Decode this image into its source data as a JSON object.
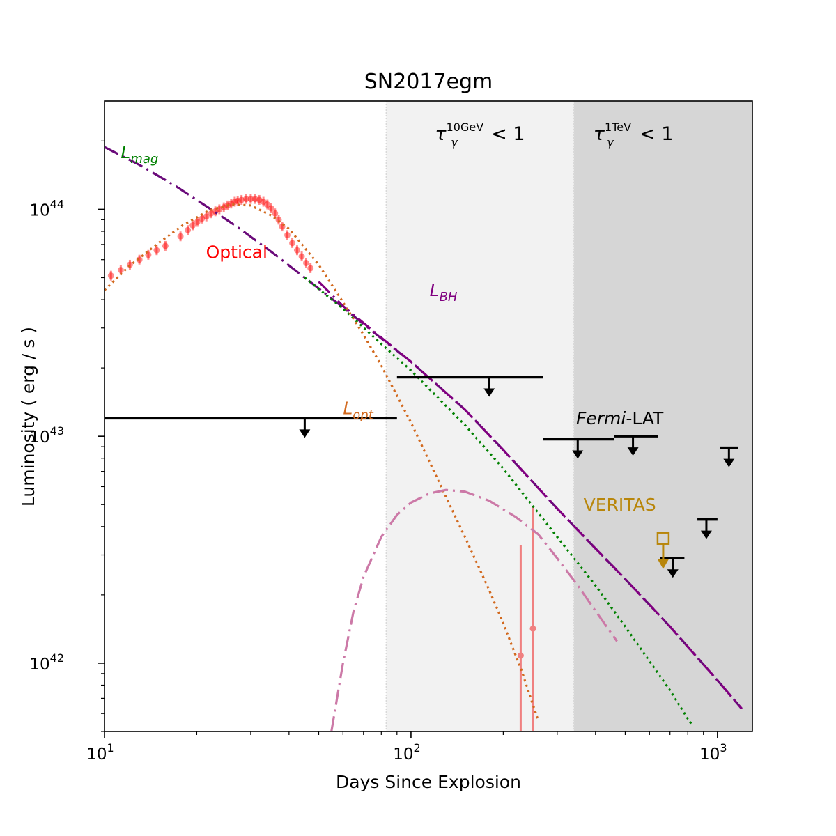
{
  "chart_data": {
    "type": "line",
    "title": "SN2017egm",
    "xlabel": "Days Since Explosion",
    "ylabel": "Luminosity ( erg / s )",
    "xscale": "log",
    "yscale": "log",
    "xlim": [
      10,
      1300
    ],
    "ylim": [
      5e+41,
      3e+44
    ],
    "grid": false,
    "x_ticks": [
      {
        "value": 10,
        "base": "10",
        "exp": "1"
      },
      {
        "value": 100,
        "base": "10",
        "exp": "2"
      },
      {
        "value": 1000,
        "base": "10",
        "exp": "3"
      }
    ],
    "y_ticks": [
      {
        "value": 1e+42,
        "base": "10",
        "exp": "42"
      },
      {
        "value": 1e+43,
        "base": "10",
        "exp": "43"
      },
      {
        "value": 1e+44,
        "base": "10",
        "exp": "44"
      }
    ],
    "shaded_regions": [
      {
        "from": 83,
        "to": 340,
        "color": "#f2f2f2",
        "label_main": "τ",
        "label_sub": "γ",
        "label_sup": "10GeV",
        "label_rest": " < 1"
      },
      {
        "from": 340,
        "to": 1300,
        "color": "#d6d6d6",
        "label_main": "τ",
        "label_sub": "γ",
        "label_sup": "1TeV",
        "label_rest": " < 1"
      }
    ],
    "series": [
      {
        "name": "Optical",
        "kind": "points",
        "color": "#ff0000",
        "label_x": 27,
        "label_y": 6.1e+43,
        "x": [
          10.5,
          11.3,
          12.1,
          13.0,
          13.9,
          14.8,
          15.8,
          17.7,
          18.7,
          19.4,
          20.1,
          20.8,
          21.5,
          22.3,
          23.0,
          23.7,
          24.5,
          25.2,
          25.9,
          26.6,
          27.2,
          28.0,
          29.0,
          30.0,
          31.0,
          32.0,
          33.0,
          34.0,
          35.0,
          36.0,
          37.0,
          38.0,
          39.5,
          41.0,
          42.5,
          44.0,
          45.5,
          47.0
        ],
        "y": [
          5.1e+43,
          5.4e+43,
          5.7e+43,
          6e+43,
          6.3e+43,
          6.6e+43,
          6.9e+43,
          7.6e+43,
          8.1e+43,
          8.5e+43,
          8.8e+43,
          9.1e+43,
          9.3e+43,
          9.6e+43,
          9.8e+43,
          1e+44,
          1.02e+44,
          1.04e+44,
          1.06e+44,
          1.08e+44,
          1.09e+44,
          1.1e+44,
          1.11e+44,
          1.11e+44,
          1.11e+44,
          1.1e+44,
          1.08e+44,
          1.05e+44,
          1.01e+44,
          9.6e+43,
          9e+43,
          8.4e+43,
          7.7e+43,
          7.1e+43,
          6.6e+43,
          6.2e+43,
          5.8e+43,
          5.5e+43
        ]
      },
      {
        "name": "Optical late",
        "kind": "errorpoints",
        "color": "#f08080",
        "x": [
          228,
          250
        ],
        "y": [
          1.08e+42,
          1.42e+42
        ],
        "y_low": [
          5e+41,
          5e+41
        ],
        "y_high": [
          3.3e+42,
          4.9e+42
        ]
      },
      {
        "name": "L_mag",
        "kind": "line",
        "style": "dashdot",
        "color": "#6a0a7a",
        "label_x": 11.3,
        "label_y": 1.68e+44,
        "label_main": "L",
        "label_sub": "mag",
        "label_color": "#008000",
        "x": [
          10,
          13,
          17,
          22,
          27,
          35,
          45,
          60,
          80,
          100,
          150,
          200,
          300,
          400,
          500,
          700,
          1000,
          1200
        ],
        "y": [
          1.88e+44,
          1.57e+44,
          1.27e+44,
          1.01e+44,
          8.4e+43,
          6.5e+43,
          5e+43,
          3.7e+43,
          2.7e+43,
          2.13e+43,
          1.31e+43,
          8.7e+42,
          4.8e+42,
          3.2e+42,
          2.35e+42,
          1.45e+42,
          8.4e+41,
          6.3e+41
        ]
      },
      {
        "name": "L_BH",
        "kind": "line",
        "style": "dashdot",
        "color": "#800080",
        "label_x": 115,
        "label_y": 4.15e+43,
        "label_main": "L",
        "label_sub": "BH",
        "label_color": "#800080",
        "x": [
          50,
          60,
          80,
          100,
          150,
          200,
          300,
          400,
          500,
          700,
          1000,
          1200
        ],
        "y": [
          4.8e+43,
          3.75e+43,
          2.72e+43,
          2.13e+43,
          1.31e+43,
          8.7e+42,
          4.8e+42,
          3.2e+42,
          2.35e+42,
          1.45e+42,
          8.4e+41,
          6.3e+41
        ]
      },
      {
        "name": "green",
        "kind": "line",
        "style": "dotted",
        "color": "#008000",
        "x": [
          45,
          60,
          80,
          100,
          150,
          200,
          300,
          400,
          500,
          600,
          700,
          800,
          830
        ],
        "y": [
          5e+43,
          3.65e+43,
          2.55e+43,
          1.95e+43,
          1.12e+43,
          7.2e+42,
          3.6e+42,
          2.2e+42,
          1.45e+42,
          1.02e+42,
          7.6e+41,
          5.7e+41,
          5.3e+41
        ]
      },
      {
        "name": "L_opt",
        "kind": "line",
        "style": "dotted",
        "color": "#d2691e",
        "label_x": 60,
        "label_y": 1.25e+43,
        "label_main": "L",
        "label_sub": "opt",
        "label_color": "#d2691e",
        "x": [
          10,
          12,
          15,
          18,
          22,
          26,
          30,
          35,
          40,
          50,
          60,
          70,
          80,
          100,
          120,
          150,
          180,
          200,
          230,
          260
        ],
        "y": [
          4.4e+43,
          5.6e+43,
          7.1e+43,
          8.5e+43,
          9.9e+43,
          1.05e+44,
          1.04e+44,
          9.4e+43,
          8.2e+43,
          5.7e+43,
          3.9e+43,
          2.8e+43,
          2.05e+43,
          1.15e+43,
          6.8e+42,
          3.6e+42,
          2.1e+42,
          1.5e+42,
          9.2e+41,
          5.6e+41
        ]
      },
      {
        "name": "pink",
        "kind": "line",
        "style": "dashdot",
        "color": "#cc79a7",
        "x": [
          55,
          60,
          65,
          70,
          80,
          90,
          100,
          115,
          130,
          150,
          180,
          220,
          260,
          300,
          350,
          400,
          470
        ],
        "y": [
          5e+41,
          1e+42,
          1.7e+42,
          2.4e+42,
          3.6e+42,
          4.5e+42,
          5.1e+42,
          5.6e+42,
          5.8e+42,
          5.7e+42,
          5.2e+42,
          4.4e+42,
          3.7e+42,
          2.9e+42,
          2.2e+42,
          1.7e+42,
          1.25e+42
        ]
      }
    ],
    "upper_limits": [
      {
        "instrument": "Fermi-LAT",
        "x_from": 10,
        "x_to": 90,
        "y": 1.2e+43,
        "arrow_x": 45,
        "color": "#000000"
      },
      {
        "instrument": "Fermi-LAT",
        "x_from": 90,
        "x_to": 270,
        "y": 1.82e+43,
        "arrow_x": 180,
        "color": "#000000"
      },
      {
        "instrument": "Fermi-LAT",
        "x_from": 270,
        "x_to": 460,
        "y": 9.7e+42,
        "arrow_x": 350,
        "color": "#000000"
      },
      {
        "instrument": "Fermi-LAT",
        "x_from": 460,
        "x_to": 640,
        "y": 1e+43,
        "arrow_x": 530,
        "color": "#000000"
      },
      {
        "instrument": "Fermi-LAT",
        "x_from": 1020,
        "x_to": 1170,
        "y": 8.9e+42,
        "arrow_x": 1090,
        "color": "#000000"
      },
      {
        "instrument": "Fermi-LAT",
        "x_from": 860,
        "x_to": 1000,
        "y": 4.3e+42,
        "arrow_x": 920,
        "color": "#000000"
      },
      {
        "instrument": "Fermi-LAT",
        "x_from": 650,
        "x_to": 780,
        "y": 2.9e+42,
        "arrow_x": 715,
        "color": "#000000"
      },
      {
        "instrument": "VERITAS",
        "x_from": 665,
        "x_to": 665,
        "y": 3.55e+42,
        "arrow_x": 665,
        "color": "#b8860b",
        "marker": "square"
      }
    ],
    "annotations": [
      {
        "text_italic": "Fermi",
        "text_rest": "-LAT",
        "x": 480,
        "y": 1.13e+43,
        "color": "#000000"
      },
      {
        "text_italic": "",
        "text_rest": "VERITAS",
        "x": 480,
        "y": 4.7e+42,
        "color": "#b8860b"
      }
    ]
  }
}
